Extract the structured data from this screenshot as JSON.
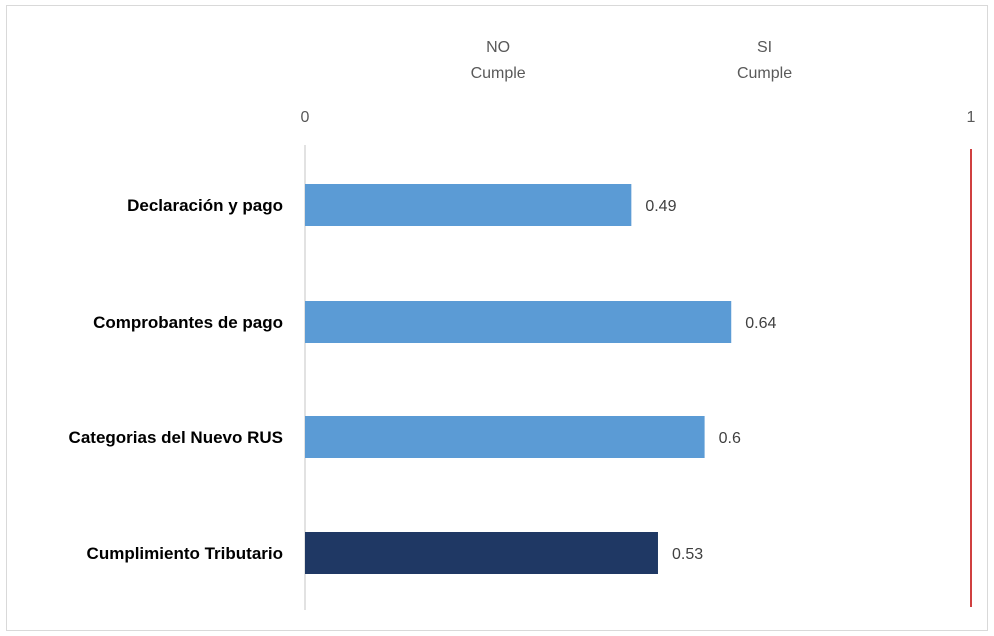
{
  "chart_data": {
    "type": "bar",
    "orientation": "horizontal",
    "categories": [
      "Declaración y pago",
      "Comprobantes de pago",
      "Categorias del Nuevo RUS",
      "Cumplimiento Tributario"
    ],
    "values": [
      0.49,
      0.64,
      0.6,
      0.53
    ],
    "value_labels": [
      "0.49",
      "0.64",
      "0.6",
      "0.53"
    ],
    "bar_colors": [
      "#5b9bd5",
      "#5b9bd5",
      "#5b9bd5",
      "#1f3864"
    ],
    "xlim": [
      0,
      1
    ],
    "x_ticks": [
      "0",
      "1"
    ],
    "header_labels": [
      {
        "lines": [
          "NO",
          "Cumple"
        ]
      },
      {
        "lines": [
          "SI",
          "Cumple"
        ]
      }
    ],
    "reference_line": {
      "x": 1,
      "color": "#c00000"
    },
    "axis_color": "#d9d9d9",
    "title": "",
    "xlabel": "",
    "ylabel": "",
    "grid": false,
    "legend": "none"
  }
}
